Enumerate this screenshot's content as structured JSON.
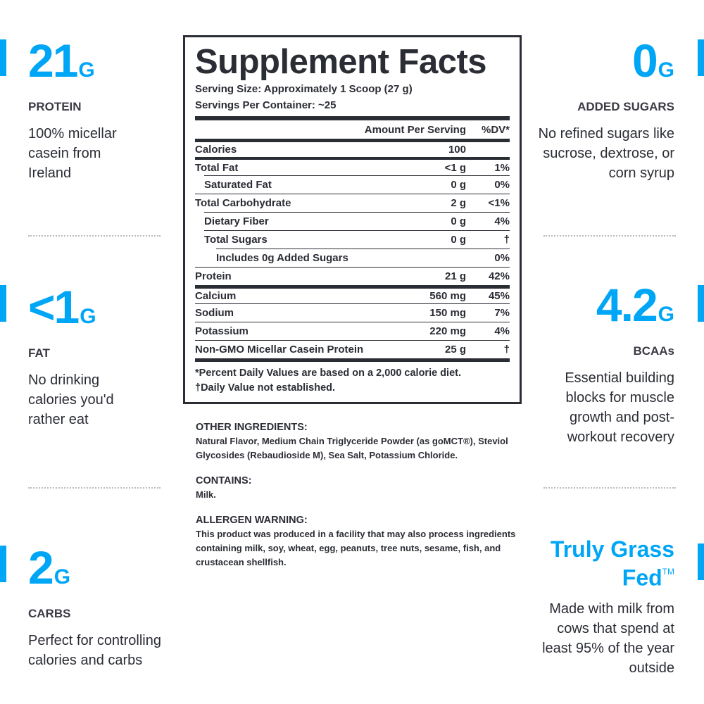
{
  "colors": {
    "accent": "#00a6f6",
    "text": "#2b2d35"
  },
  "left_stats": [
    {
      "value": "21",
      "unit": "G",
      "label": "PROTEIN",
      "desc": "100% micellar casein from Ireland"
    },
    {
      "value": "<1",
      "unit": "G",
      "label": "FAT",
      "desc": "No drinking calories you'd rather eat"
    },
    {
      "value": "2",
      "unit": "G",
      "label": "CARBS",
      "desc": "Perfect for controlling calories and carbs"
    }
  ],
  "right_stats": [
    {
      "value": "0",
      "unit": "G",
      "label": "ADDED SUGARS",
      "desc": "No refined sugars like sucrose, dextrose, or corn syrup"
    },
    {
      "value": "4.2",
      "unit": "G",
      "label": "BCAAs",
      "desc": "Essential building blocks for muscle growth and post-workout recovery"
    },
    {
      "value": "Truly Grass Fed",
      "unit": "TM",
      "label": "",
      "desc": "Made with milk from cows that spend at least 95% of the year outside"
    }
  ],
  "facts": {
    "title": "Supplement Facts",
    "serving_size": "Serving Size: Approximately 1 Scoop (27 g)",
    "servings": "Servings Per Container: ~25",
    "col_amount": "Amount Per Serving",
    "col_dv": "%DV*",
    "rows": [
      {
        "name": "Calories",
        "amount": "100",
        "dv": ""
      },
      {
        "name": "Total Fat",
        "amount": "<1 g",
        "dv": "1%"
      },
      {
        "name": "Saturated Fat",
        "amount": "0 g",
        "dv": "0%"
      },
      {
        "name": "Total Carbohydrate",
        "amount": "2 g",
        "dv": "<1%"
      },
      {
        "name": "Dietary Fiber",
        "amount": "0 g",
        "dv": "4%"
      },
      {
        "name": "Total Sugars",
        "amount": "0 g",
        "dv": "†"
      },
      {
        "name": "Includes 0g Added Sugars",
        "amount": "",
        "dv": "0%"
      },
      {
        "name": "Protein",
        "amount": "21 g",
        "dv": "42%"
      },
      {
        "name": "Calcium",
        "amount": "560 mg",
        "dv": "45%"
      },
      {
        "name": "Sodium",
        "amount": "150 mg",
        "dv": "7%"
      },
      {
        "name": "Potassium",
        "amount": "220 mg",
        "dv": "4%"
      },
      {
        "name": "Non-GMO Micellar Casein Protein",
        "amount": "25 g",
        "dv": "†"
      }
    ],
    "footnote1": "*Percent Daily Values are based on a 2,000 calorie diet.",
    "footnote2": "†Daily Value not established."
  },
  "ingredients": {
    "other_title": "OTHER INGREDIENTS:",
    "other_text": "Natural Flavor, Medium Chain Triglyceride Powder (as goMCT®), Steviol Glycosides (Rebaudioside M), Sea Salt, Potassium Chloride.",
    "contains_title": "CONTAINS:",
    "contains_text": "Milk.",
    "allergen_title": "ALLERGEN WARNING:",
    "allergen_text": "This product was produced in a facility that may also process ingredients containing milk, soy, wheat, egg, peanuts, tree nuts, sesame, fish, and crustacean shellfish."
  }
}
